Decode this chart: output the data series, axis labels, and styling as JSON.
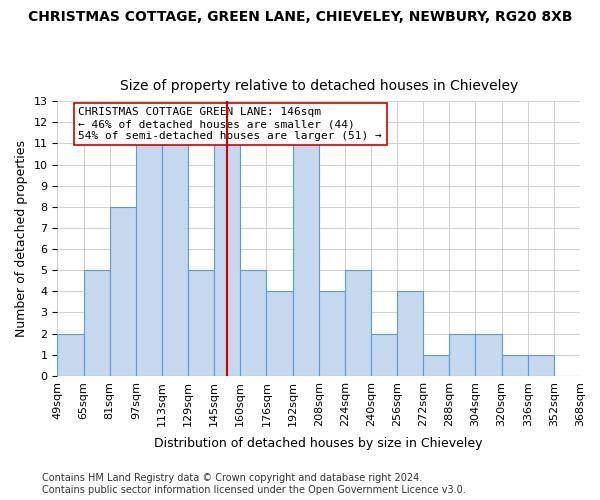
{
  "title": "CHRISTMAS COTTAGE, GREEN LANE, CHIEVELEY, NEWBURY, RG20 8XB",
  "subtitle": "Size of property relative to detached houses in Chieveley",
  "xlabel": "Distribution of detached houses by size in Chieveley",
  "ylabel": "Number of detached properties",
  "bin_labels": [
    "49sqm",
    "65sqm",
    "81sqm",
    "97sqm",
    "113sqm",
    "129sqm",
    "145sqm",
    "160sqm",
    "176sqm",
    "192sqm",
    "208sqm",
    "224sqm",
    "240sqm",
    "256sqm",
    "272sqm",
    "288sqm",
    "304sqm",
    "320sqm",
    "336sqm",
    "352sqm",
    "368sqm"
  ],
  "values": [
    2,
    5,
    8,
    11,
    11,
    5,
    11,
    5,
    4,
    11,
    4,
    5,
    2,
    4,
    1,
    2,
    2,
    1,
    1,
    0
  ],
  "bar_color": "#c5d8ed",
  "bar_edge_color": "#5b9bd5",
  "marker_bin_idx": 6,
  "marker_color": "#cc0000",
  "annotation_text": "CHRISTMAS COTTAGE GREEN LANE: 146sqm\n← 46% of detached houses are smaller (44)\n54% of semi-detached houses are larger (51) →",
  "annotation_box_color": "#ffffff",
  "annotation_box_edge": "#cc0000",
  "ylim": [
    0,
    13
  ],
  "yticks": [
    0,
    1,
    2,
    3,
    4,
    5,
    6,
    7,
    8,
    9,
    10,
    11,
    12,
    13
  ],
  "background_color": "#ffffff",
  "footer_text": "Contains HM Land Registry data © Crown copyright and database right 2024.\nContains public sector information licensed under the Open Government Licence v3.0.",
  "grid_color": "#d0d0d0",
  "title_fontsize": 10,
  "subtitle_fontsize": 10,
  "xlabel_fontsize": 9,
  "ylabel_fontsize": 9,
  "tick_fontsize": 8,
  "annotation_fontsize": 8,
  "footer_fontsize": 7
}
